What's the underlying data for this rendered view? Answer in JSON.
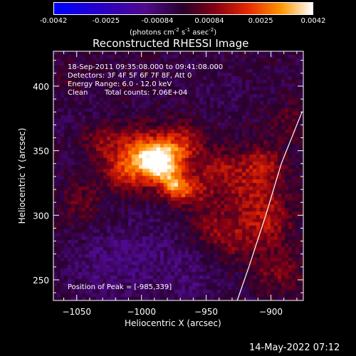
{
  "colorbar": {
    "ticks": [
      "-0.0042",
      "-0.0025",
      "-0.00084",
      "0.00084",
      "0.0025",
      "0.0042"
    ],
    "unit_label": "(photons cm",
    "unit_exp1": "-2",
    "unit_mid": " s",
    "unit_exp2": "-1",
    "unit_end": " asec",
    "unit_exp3": "-2",
    "unit_close": ")"
  },
  "title": "Reconstructed RHESSI Image",
  "info": {
    "time_range": "18-Sep-2011 09:35:08.000 to 09:41:08.000",
    "detectors": "Detectors: 3F 4F 5F 6F 7F 8F, Att 0",
    "energy": "Energy Range: 6.0 - 12.0 keV",
    "method": "Clean",
    "counts": "Total counts: 7.06E+04",
    "peak": "Position of Peak = [-985,339]"
  },
  "timestamp": "14-May-2022 07:12",
  "chart_data": {
    "type": "heatmap",
    "title": "Reconstructed RHESSI Image",
    "xlabel": "Heliocentric X (arcsec)",
    "ylabel": "Heliocentric Y (arcsec)",
    "xlim": [
      -1068,
      -875
    ],
    "ylim": [
      234,
      427
    ],
    "x_ticks": [
      -1050,
      -1000,
      -950,
      -900
    ],
    "x_tick_labels": [
      "−1050",
      "−1000",
      "−950",
      "−900"
    ],
    "y_ticks": [
      250,
      300,
      350,
      400
    ],
    "y_tick_labels": [
      "250",
      "300",
      "350",
      "400"
    ],
    "colorbar_range": [
      -0.0042,
      0.0042
    ],
    "peak_position": [
      -985,
      339
    ],
    "sources": [
      {
        "x": -986,
        "y": 341,
        "amp": 0.0042,
        "sigma": 11
      },
      {
        "x": -973,
        "y": 322,
        "amp": 0.0028,
        "sigma": 8
      },
      {
        "x": -1003,
        "y": 347,
        "amp": 0.0022,
        "sigma": 14
      },
      {
        "x": -968,
        "y": 355,
        "amp": 0.0018,
        "sigma": 11
      },
      {
        "x": -1015,
        "y": 332,
        "amp": 0.0012,
        "sigma": 11
      },
      {
        "x": -1032,
        "y": 358,
        "amp": 0.0012,
        "sigma": 10
      },
      {
        "x": -958,
        "y": 318,
        "amp": 0.0012,
        "sigma": 9
      },
      {
        "x": -942,
        "y": 337,
        "amp": 0.0011,
        "sigma": 11
      },
      {
        "x": -1047,
        "y": 310,
        "amp": 0.0009,
        "sigma": 11
      },
      {
        "x": -918,
        "y": 322,
        "amp": 0.0014,
        "sigma": 17
      },
      {
        "x": -902,
        "y": 296,
        "amp": 0.0014,
        "sigma": 13
      },
      {
        "x": -905,
        "y": 340,
        "amp": 0.0011,
        "sigma": 11
      },
      {
        "x": -928,
        "y": 282,
        "amp": 0.0011,
        "sigma": 12
      },
      {
        "x": -948,
        "y": 292,
        "amp": 0.0009,
        "sigma": 11
      },
      {
        "x": -895,
        "y": 258,
        "amp": 0.0011,
        "sigma": 13
      },
      {
        "x": -887,
        "y": 372,
        "amp": 0.0007,
        "sigma": 11
      },
      {
        "x": -1060,
        "y": 397,
        "amp": 0.0004,
        "sigma": 11
      },
      {
        "x": -1030,
        "y": 260,
        "amp": -0.0007,
        "sigma": 19
      },
      {
        "x": -995,
        "y": 270,
        "amp": -0.0006,
        "sigma": 19
      },
      {
        "x": -960,
        "y": 250,
        "amp": -0.0005,
        "sigma": 15
      },
      {
        "x": -1055,
        "y": 380,
        "amp": -0.0003,
        "sigma": 15
      },
      {
        "x": -940,
        "y": 395,
        "amp": -0.0003,
        "sigma": 13
      }
    ],
    "limb_curve": [
      [
        -926,
        234
      ],
      [
        -917,
        260
      ],
      [
        -904,
        300
      ],
      [
        -892,
        340
      ],
      [
        -876,
        380
      ]
    ]
  }
}
